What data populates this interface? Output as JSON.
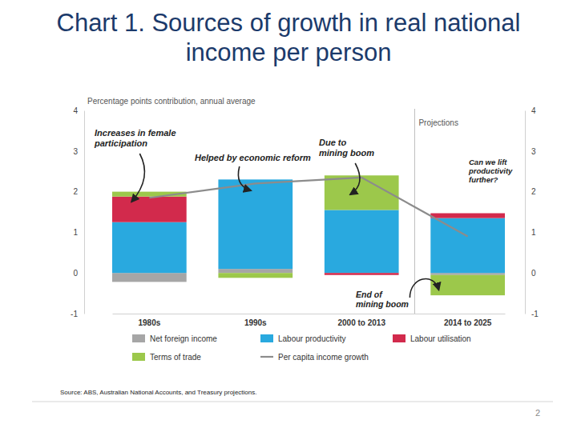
{
  "chart_data": {
    "type": "bar",
    "title": "Chart 1. Sources of growth in real national income per person",
    "ylabel": "Percentage points contribution, annual average",
    "categories": [
      "1980s",
      "1990s",
      "2000 to 2013",
      "2014 to 2025"
    ],
    "stacked": true,
    "series": [
      {
        "name": "Net foreign income",
        "color": "#a6a6a6",
        "values": [
          -0.22,
          0.1,
          0,
          -0.05
        ]
      },
      {
        "name": "Labour productivity",
        "color": "#29a9df",
        "values": [
          1.25,
          2.2,
          1.55,
          1.35
        ]
      },
      {
        "name": "Labour utilisation",
        "color": "#d22a4c",
        "values": [
          0.63,
          0,
          -0.05,
          0.12
        ]
      },
      {
        "name": "Terms of trade",
        "color": "#9cc84b",
        "values": [
          0.12,
          -0.12,
          0.85,
          -0.5
        ]
      },
      {
        "name": "Per capita income growth",
        "type": "line",
        "color": "#8c8c8c",
        "values": [
          1.85,
          2.2,
          2.35,
          0.9
        ]
      }
    ],
    "ylim": [
      -1,
      4
    ],
    "yticks": [
      -1,
      0,
      1,
      2,
      3,
      4
    ],
    "y2lim": [
      -1,
      4
    ],
    "y2ticks": [
      -1,
      0,
      1,
      2,
      3,
      4
    ],
    "grid": false,
    "legend": "bottom",
    "annotations": [
      "Increases in female participation",
      "Helped by economic reform",
      "Due to mining boom",
      "Can we lift productivity further?",
      "End of mining boom",
      "Projections"
    ],
    "source": "Source: ABS, Australian National Accounts, and Treasury projections.",
    "page": "2"
  }
}
